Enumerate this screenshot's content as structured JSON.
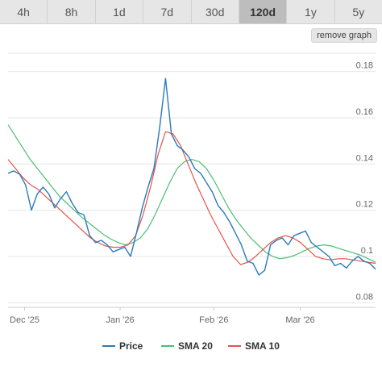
{
  "tabs": [
    {
      "label": "4h",
      "active": false
    },
    {
      "label": "8h",
      "active": false
    },
    {
      "label": "1d",
      "active": false
    },
    {
      "label": "7d",
      "active": false
    },
    {
      "label": "30d",
      "active": false
    },
    {
      "label": "120d",
      "active": true
    },
    {
      "label": "1y",
      "active": false
    },
    {
      "label": "5y",
      "active": false
    }
  ],
  "remove_graph_label": "remove graph",
  "chart_data": {
    "type": "line",
    "x_ticks": [
      "Dec '25",
      "Jan '26",
      "Feb '26",
      "Mar '26"
    ],
    "y_ticks": [
      "0.18",
      "0.16",
      "0.14",
      "0.12",
      "0.1",
      "0.08"
    ],
    "ylim": [
      0.078,
      0.19
    ],
    "legend_position": "bottom",
    "series": [
      {
        "name": "Price",
        "color": "#2b7bb9",
        "values": [
          0.136,
          0.137,
          0.1355,
          0.131,
          0.12,
          0.127,
          0.13,
          0.127,
          0.121,
          0.125,
          0.128,
          0.123,
          0.119,
          0.118,
          0.109,
          0.106,
          0.107,
          0.105,
          0.102,
          0.103,
          0.104,
          0.1,
          0.11,
          0.121,
          0.13,
          0.138,
          0.156,
          0.177,
          0.153,
          0.148,
          0.146,
          0.143,
          0.138,
          0.136,
          0.132,
          0.128,
          0.122,
          0.119,
          0.115,
          0.11,
          0.105,
          0.098,
          0.097,
          0.092,
          0.094,
          0.105,
          0.107,
          0.108,
          0.105,
          0.109,
          0.11,
          0.111,
          0.106,
          0.104,
          0.102,
          0.1,
          0.096,
          0.097,
          0.095,
          0.098,
          0.1,
          0.098,
          0.097,
          0.0945
        ]
      },
      {
        "name": "SMA 20",
        "color": "#4dbd74",
        "values": [
          0.157,
          0.152,
          0.147,
          0.142,
          0.138,
          0.134,
          0.13,
          0.126,
          0.123,
          0.12,
          0.117,
          0.1145,
          0.112,
          0.1095,
          0.1075,
          0.106,
          0.105,
          0.106,
          0.108,
          0.112,
          0.118,
          0.125,
          0.132,
          0.138,
          0.141,
          0.142,
          0.141,
          0.138,
          0.133,
          0.127,
          0.121,
          0.116,
          0.112,
          0.108,
          0.105,
          0.102,
          0.1,
          0.099,
          0.0995,
          0.1005,
          0.102,
          0.1035,
          0.1045,
          0.105,
          0.1045,
          0.1035,
          0.1025,
          0.1015,
          0.1005,
          0.099,
          0.0975
        ]
      },
      {
        "name": "SMA 10",
        "color": "#e8524a",
        "values": [
          0.142,
          0.138,
          0.134,
          0.131,
          0.129,
          0.126,
          0.123,
          0.12,
          0.117,
          0.114,
          0.111,
          0.108,
          0.106,
          0.1045,
          0.104,
          0.104,
          0.105,
          0.109,
          0.118,
          0.13,
          0.144,
          0.154,
          0.153,
          0.148,
          0.14,
          0.132,
          0.125,
          0.118,
          0.112,
          0.106,
          0.1,
          0.0965,
          0.0975,
          0.1,
          0.103,
          0.106,
          0.108,
          0.109,
          0.108,
          0.106,
          0.103,
          0.1,
          0.099,
          0.0985,
          0.099,
          0.099,
          0.0985,
          0.098,
          0.0975,
          0.097
        ]
      }
    ]
  }
}
